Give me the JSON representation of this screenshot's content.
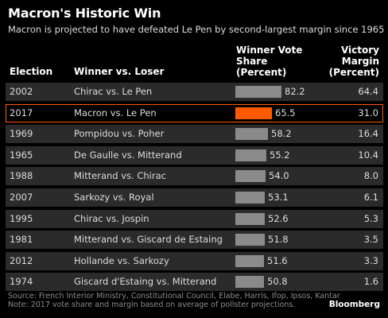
{
  "title": "Macron's Historic Win",
  "subtitle": "Macron is projected to have defeated Le Pen by second-largest margin since 1965",
  "headers": {
    "election": "Election",
    "matchup": "Winner vs. Loser",
    "share_line1": "Winner Vote",
    "share_line2": "Share",
    "share_line3": "(Percent)",
    "margin_line1": "Victory",
    "margin_line2": "Margin",
    "margin_line3": "(Percent)"
  },
  "chart_data": {
    "type": "table",
    "title": "Macron's Historic Win",
    "subtitle": "Macron is projected to have defeated Le Pen by second-largest margin since 1965",
    "columns": [
      "Election",
      "Winner vs. Loser",
      "Winner Vote Share (Percent)",
      "Victory Margin (Percent)"
    ],
    "rows": [
      {
        "year": "2002",
        "matchup": "Chirac vs. Le Pen",
        "share": "82.2",
        "margin": "64.4",
        "highlight": false
      },
      {
        "year": "2017",
        "matchup": "Macron vs. Le Pen",
        "share": "65.5",
        "margin": "31.0",
        "highlight": true
      },
      {
        "year": "1969",
        "matchup": "Pompidou vs. Poher",
        "share": "58.2",
        "margin": "16.4",
        "highlight": false
      },
      {
        "year": "1965",
        "matchup": "De Gaulle vs. Mitterand",
        "share": "55.2",
        "margin": "10.4",
        "highlight": false
      },
      {
        "year": "1988",
        "matchup": "Mitterand vs. Chirac",
        "share": "54.0",
        "margin": "8.0",
        "highlight": false
      },
      {
        "year": "2007",
        "matchup": "Sarkozy vs. Royal",
        "share": "53.1",
        "margin": "6.1",
        "highlight": false
      },
      {
        "year": "1995",
        "matchup": "Chirac vs. Jospin",
        "share": "52.6",
        "margin": "5.3",
        "highlight": false
      },
      {
        "year": "1981",
        "matchup": "Mitterand vs. Giscard de Estaing",
        "share": "51.8",
        "margin": "3.5",
        "highlight": false
      },
      {
        "year": "2012",
        "matchup": "Hollande vs. Sarkozy",
        "share": "51.6",
        "margin": "3.3",
        "highlight": false
      },
      {
        "year": "1974",
        "matchup": "Giscard d'Estaing vs. Mitterand",
        "share": "50.8",
        "margin": "1.6",
        "highlight": false
      }
    ],
    "bar_color": "#8a8a8a",
    "highlight_color": "#ff5a00"
  },
  "source_line1": "Source: French Interior Ministry, Constitutional Council, Elabe, Harris, Ifop, Ipsos, Kantar",
  "source_line2": "Note: 2017 vote share and margin based on average of pollster projections.",
  "logo": "Bloomberg"
}
